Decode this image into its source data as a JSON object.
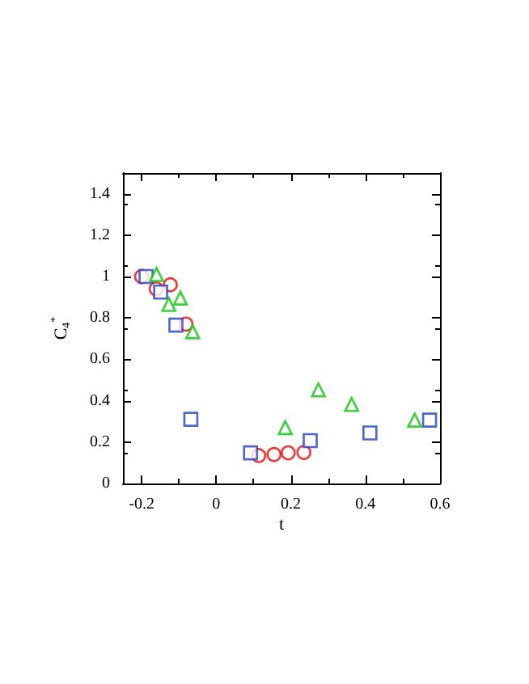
{
  "chart_data": {
    "type": "scatter",
    "xlabel": "t",
    "ylabel": "C$_{4}$$^{*}$",
    "xlim": [
      -0.25,
      0.6
    ],
    "ylim": [
      0,
      1.5
    ],
    "xticks": [
      -0.2,
      0,
      0.2,
      0.4,
      0.6
    ],
    "yticks": [
      0,
      0.2,
      0.4,
      0.6,
      0.8,
      1,
      1.2,
      1.4
    ],
    "grid": false,
    "series": [
      {
        "color": "#ff0000",
        "marker": "circle",
        "x": [
          -0.2,
          -0.161,
          -0.123,
          -0.081,
          0.114,
          0.155,
          0.193,
          0.235
        ],
        "values": [
          1.0,
          0.94,
          0.96,
          0.77,
          0.135,
          0.14,
          0.148,
          0.15
        ]
      },
      {
        "color": "#1f3fcf",
        "marker": "square",
        "x": [
          -0.188,
          -0.149,
          -0.108,
          -0.068,
          0.092,
          0.252,
          0.412,
          0.572
        ],
        "values": [
          1.0,
          0.925,
          0.765,
          0.31,
          0.148,
          0.207,
          0.244,
          0.306
        ]
      },
      {
        "color": "#00cc00",
        "marker": "triangle",
        "x": [
          -0.16,
          -0.127,
          -0.096,
          -0.063,
          0.185,
          0.274,
          0.363,
          0.532
        ],
        "values": [
          1.01,
          0.865,
          0.896,
          0.733,
          0.27,
          0.452,
          0.382,
          0.306
        ]
      }
    ]
  }
}
